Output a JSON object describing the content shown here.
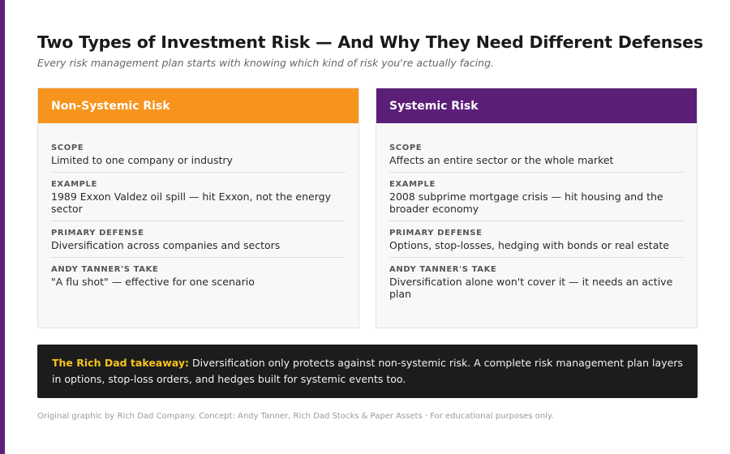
{
  "header": {
    "title": "Two Types of Investment Risk — And Why They Need Different Defenses",
    "subtitle": "Every risk management plan starts with knowing which kind of risk you're actually facing."
  },
  "cards": [
    {
      "title": "Non-Systemic Risk",
      "color": "#f7941d",
      "rows": [
        {
          "label": "SCOPE",
          "value": "Limited to one company or industry"
        },
        {
          "label": "EXAMPLE",
          "value": "1989 Exxon Valdez oil spill — hit Exxon, not the energy sector"
        },
        {
          "label": "PRIMARY DEFENSE",
          "value": "Diversification across companies and sectors"
        },
        {
          "label": "ANDY TANNER'S TAKE",
          "value": "\"A flu shot\" — effective for one scenario"
        }
      ]
    },
    {
      "title": "Systemic Risk",
      "color": "#5b1f78",
      "rows": [
        {
          "label": "SCOPE",
          "value": "Affects an entire sector or the whole market"
        },
        {
          "label": "EXAMPLE",
          "value": "2008 subprime mortgage crisis — hit housing and the broader economy"
        },
        {
          "label": "PRIMARY DEFENSE",
          "value": "Options, stop-losses, hedging with bonds or real estate"
        },
        {
          "label": "ANDY TANNER'S TAKE",
          "value": "Diversification alone won't cover it — it needs an active plan"
        }
      ]
    }
  ],
  "takeaway": {
    "lead": "The Rich Dad takeaway:",
    "text": " Diversification only protects against non-systemic risk. A complete risk management plan layers in options, stop-loss orders, and hedges built for systemic events too."
  },
  "footer": "Original graphic by Rich Dad Company. Concept: Andy Tanner, Rich Dad Stocks & Paper Assets · For educational purposes only."
}
